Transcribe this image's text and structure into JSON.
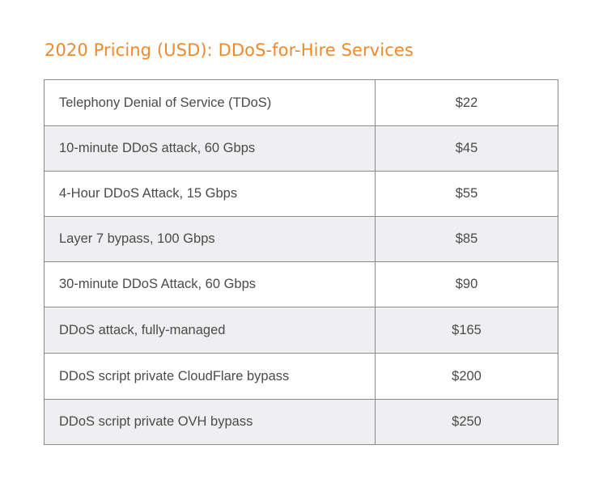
{
  "title": "2020 Pricing (USD): DDoS-for-Hire Services",
  "colors": {
    "title": "#ef8a2c",
    "row_alt": "#efeff1",
    "border": "#8a8a8a",
    "text": "#4a4a4a"
  },
  "table": {
    "rows": [
      {
        "service": "Telephony Denial of Service (TDoS)",
        "price": "$22"
      },
      {
        "service": "10-minute DDoS attack, 60 Gbps",
        "price": "$45"
      },
      {
        "service": "4-Hour DDoS Attack, 15 Gbps",
        "price": "$55"
      },
      {
        "service": "Layer 7 bypass, 100 Gbps",
        "price": "$85"
      },
      {
        "service": "30-minute DDoS Attack, 60 Gbps",
        "price": "$90"
      },
      {
        "service": "DDoS attack, fully-managed",
        "price": "$165"
      },
      {
        "service": "DDoS script private CloudFlare bypass",
        "price": "$200"
      },
      {
        "service": "DDoS script private OVH bypass",
        "price": "$250"
      }
    ]
  }
}
